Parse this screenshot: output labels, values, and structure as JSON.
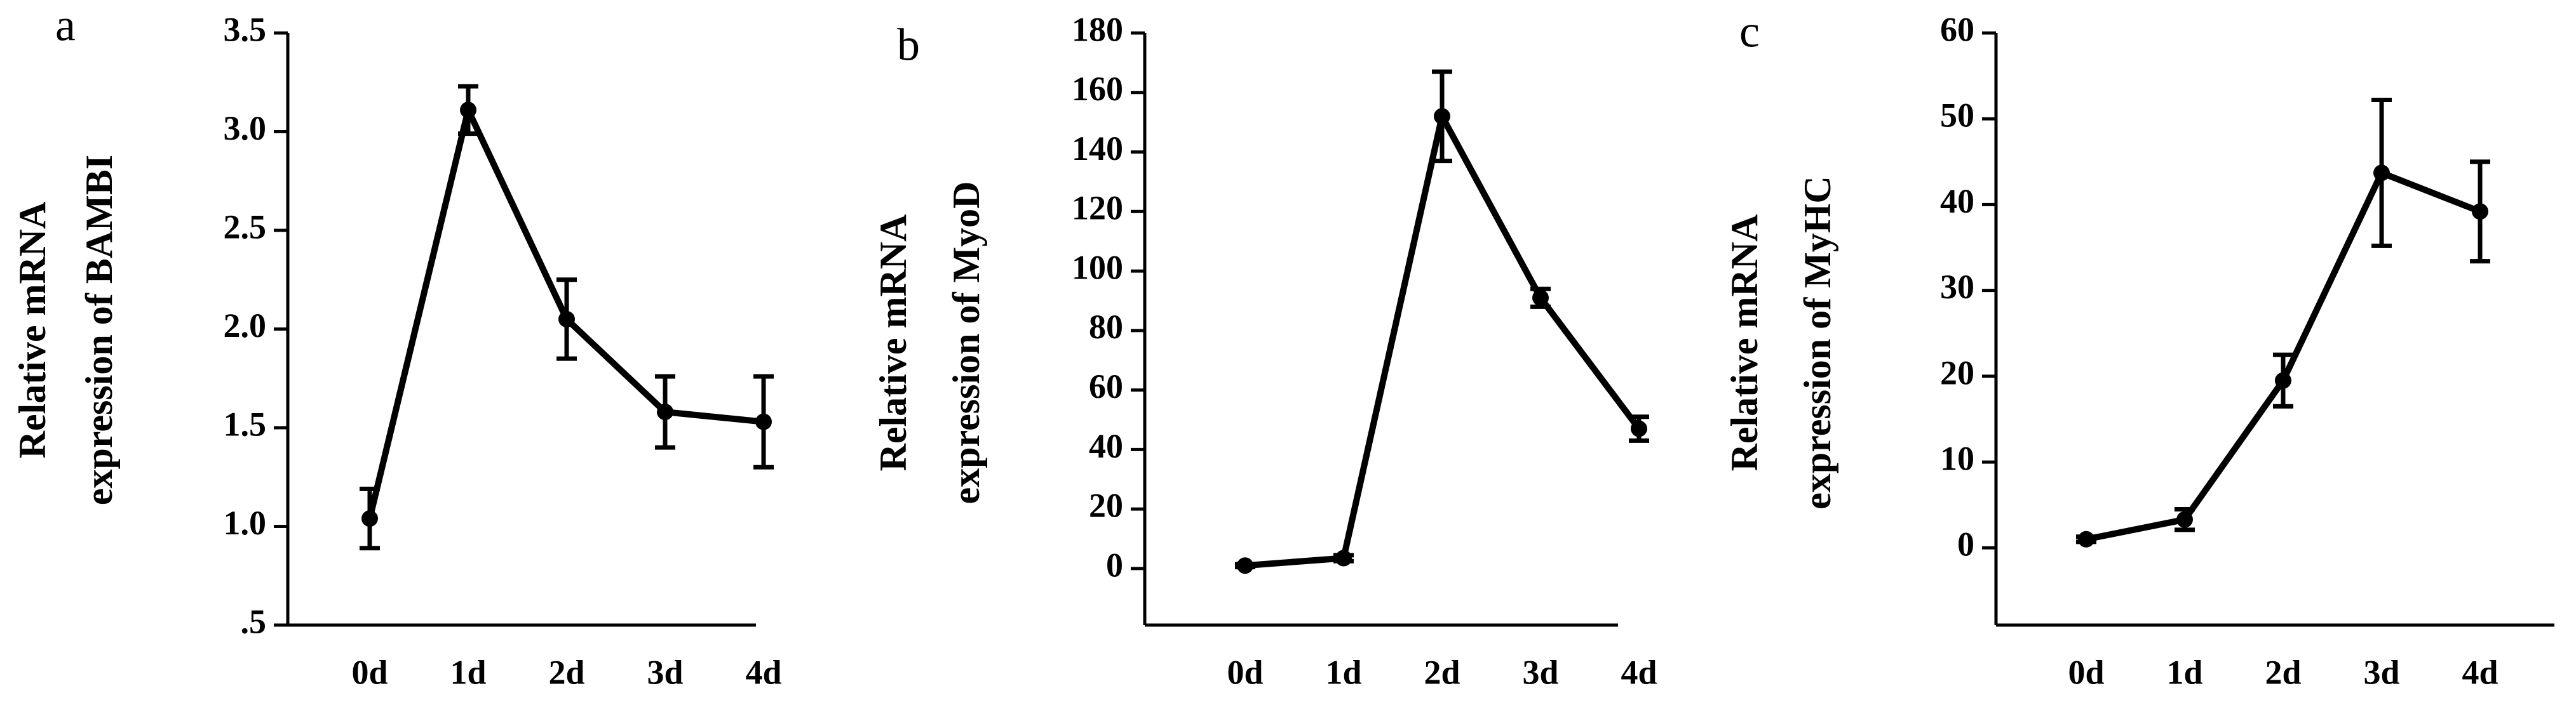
{
  "chart_data": [
    {
      "type": "line",
      "panel": "a",
      "ylabel": [
        "Relative mRNA",
        "expression of BAMBI"
      ],
      "color": "#000000",
      "categories": [
        "0d",
        "1d",
        "2d",
        "3d",
        "4d"
      ],
      "values": [
        1.04,
        3.11,
        2.05,
        1.58,
        1.53
      ],
      "errors": [
        0.15,
        0.12,
        0.2,
        0.18,
        0.23
      ],
      "ylim": [
        0.5,
        3.5
      ],
      "yticks": [
        {
          "value": 0.5,
          "label": ".5"
        },
        {
          "value": 1,
          "label": "1.0"
        },
        1.5,
        {
          "value": 2,
          "label": "2.0"
        },
        2.5,
        {
          "value": 3,
          "label": "3.0"
        },
        3.5
      ]
    },
    {
      "type": "line",
      "panel": "b",
      "ylabel": [
        "Relative mRNA",
        "expression of MyoD"
      ],
      "color": "#000000",
      "categories": [
        "0d",
        "1d",
        "2d",
        "3d",
        "4d"
      ],
      "values": [
        1,
        3.5,
        152,
        91,
        47
      ],
      "errors": [
        0.5,
        1,
        15,
        3,
        4
      ],
      "ylim": [
        -19,
        180
      ],
      "yticks": [
        0,
        20,
        40,
        60,
        80,
        100,
        120,
        140,
        160,
        180
      ]
    },
    {
      "type": "line",
      "panel": "c",
      "ylabel": [
        "Relative mRNA",
        "expression of MyHC"
      ],
      "color": "#000000",
      "categories": [
        "0d",
        "1d",
        "2d",
        "3d",
        "4d"
      ],
      "values": [
        1,
        3.3,
        19.5,
        43.7,
        39.2
      ],
      "errors": [
        0.3,
        1.2,
        3,
        8.5,
        5.8
      ],
      "ylim": [
        -9,
        60
      ],
      "yticks": [
        0,
        10,
        20,
        30,
        40,
        50,
        60
      ]
    }
  ]
}
